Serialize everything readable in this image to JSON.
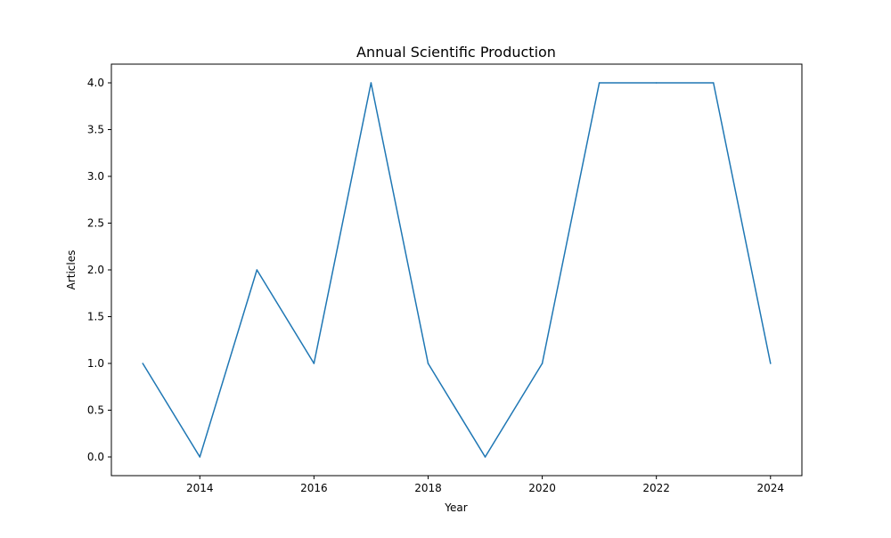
{
  "chart_data": {
    "type": "line",
    "title": "Annual Scientific Production",
    "xlabel": "Year",
    "ylabel": "Articles",
    "x": [
      2013,
      2014,
      2015,
      2016,
      2017,
      2018,
      2019,
      2020,
      2021,
      2022,
      2023,
      2024
    ],
    "series": [
      {
        "values": [
          1,
          0,
          2,
          1,
          4,
          1,
          0,
          1,
          4,
          4,
          4,
          1
        ]
      }
    ],
    "xlim": [
      2012.45,
      2024.55
    ],
    "ylim": [
      -0.2,
      4.2
    ],
    "x_ticks": [
      2014,
      2016,
      2018,
      2020,
      2022,
      2024
    ],
    "y_ticks": [
      "0.0",
      "0.5",
      "1.0",
      "1.5",
      "2.0",
      "2.5",
      "3.0",
      "3.5",
      "4.0"
    ],
    "grid": false,
    "line_color": "#1f77b4"
  }
}
